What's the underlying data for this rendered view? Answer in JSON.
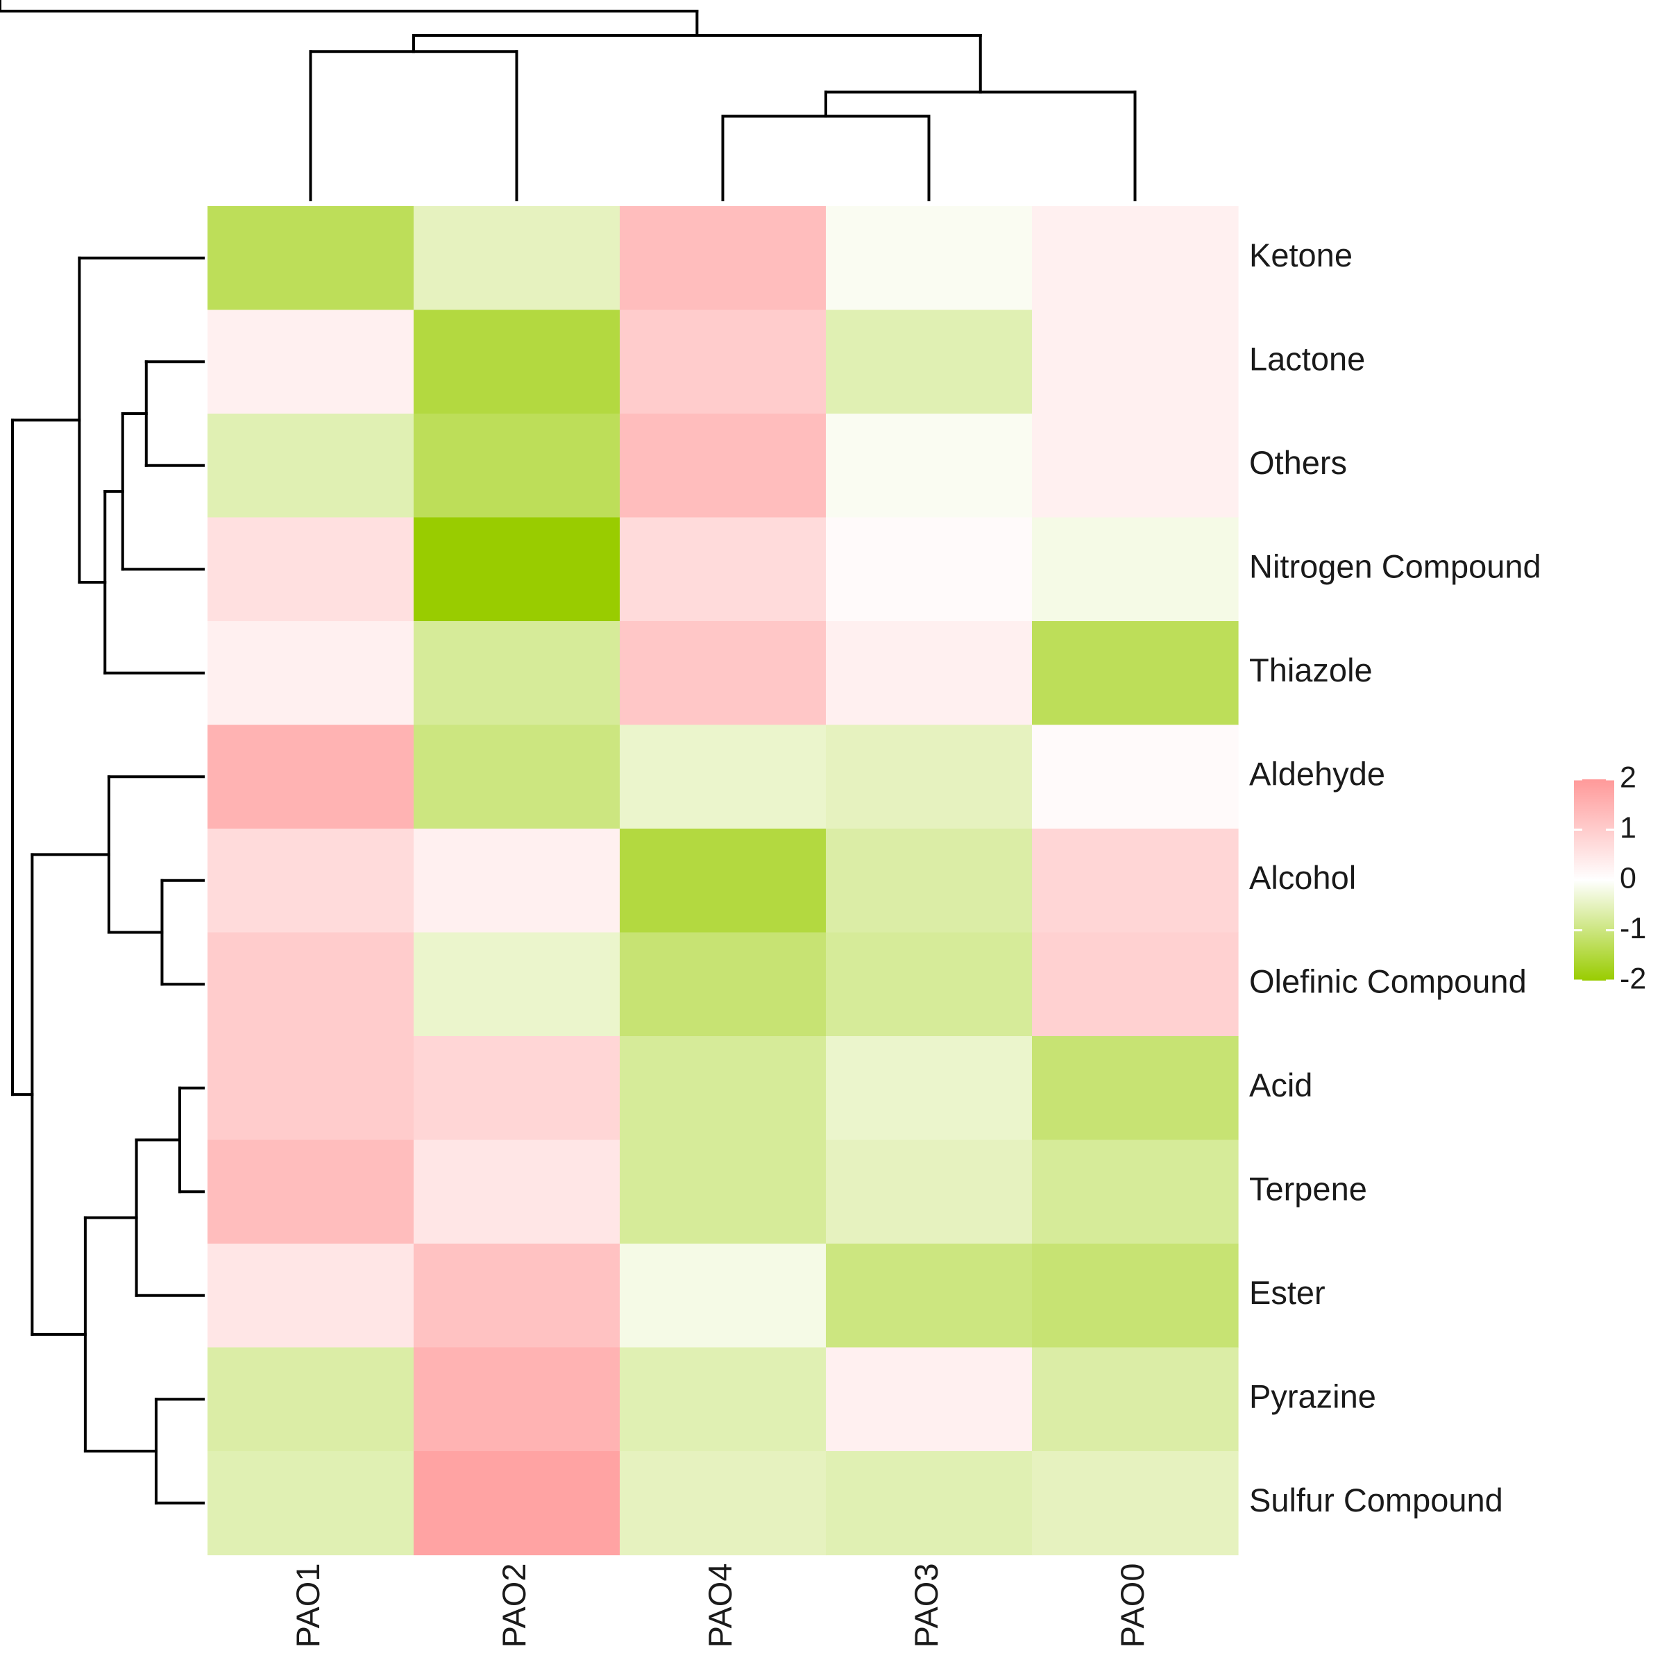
{
  "chart_data": {
    "type": "heatmap",
    "title": "",
    "columns": [
      "PAO1",
      "PAO2",
      "PAO4",
      "PAO3",
      "PAO0"
    ],
    "rows": [
      "Ketone",
      "Lactone",
      "Others",
      "Nitrogen Compound",
      "Thiazole",
      "Aldehyde",
      "Alcohol",
      "Olefinic Compound",
      "Acid",
      "Terpene",
      "Ester",
      "Pyrazine",
      "Sulfur Compound"
    ],
    "values": [
      [
        -1.3,
        -0.5,
        1.3,
        -0.1,
        0.3
      ],
      [
        0.3,
        -1.5,
        1.0,
        -0.6,
        0.3
      ],
      [
        -0.6,
        -1.3,
        1.3,
        -0.1,
        0.3
      ],
      [
        0.6,
        -2.0,
        0.7,
        0.1,
        -0.2
      ],
      [
        0.3,
        -0.8,
        1.1,
        0.3,
        -1.3
      ],
      [
        1.5,
        -1.0,
        -0.4,
        -0.5,
        0.1
      ],
      [
        0.7,
        0.3,
        -1.5,
        -0.7,
        0.8
      ],
      [
        1.0,
        -0.4,
        -1.1,
        -0.8,
        0.9
      ],
      [
        1.0,
        0.8,
        -0.8,
        -0.4,
        -1.1
      ],
      [
        1.3,
        0.5,
        -0.8,
        -0.5,
        -0.8
      ],
      [
        0.5,
        1.2,
        -0.2,
        -1.0,
        -1.1
      ],
      [
        -0.7,
        1.5,
        -0.6,
        0.3,
        -0.7
      ],
      [
        -0.6,
        1.8,
        -0.5,
        -0.6,
        -0.5
      ]
    ],
    "color_scale": {
      "low": "#99cc00",
      "mid": "#ffffff",
      "high": "#ff9999",
      "min": -2,
      "max": 2
    },
    "legend": {
      "ticks": [
        "2",
        "1",
        "0",
        "-1",
        "-2"
      ],
      "tick_values": [
        2,
        1,
        0,
        -1,
        -2
      ],
      "position": "right"
    },
    "column_dendrogram": {
      "merges": [
        [
          0,
          1,
          0.55
        ],
        [
          2,
          3,
          0.31
        ],
        [
          4,
          6,
          0.4
        ],
        [
          5,
          7,
          0.61
        ],
        [
          8,
          9,
          0.7
        ]
      ]
    },
    "row_dendrogram": {
      "merges": [
        [
          1,
          2,
          0.29
        ],
        [
          3,
          13,
          0.41
        ],
        [
          4,
          14,
          0.5
        ],
        [
          0,
          15,
          0.63
        ],
        [
          6,
          7,
          0.21
        ],
        [
          5,
          17,
          0.48
        ],
        [
          8,
          9,
          0.12
        ],
        [
          10,
          19,
          0.34
        ],
        [
          11,
          12,
          0.24
        ],
        [
          20,
          21,
          0.6
        ],
        [
          18,
          22,
          0.87
        ],
        [
          16,
          23,
          0.97
        ]
      ]
    }
  }
}
